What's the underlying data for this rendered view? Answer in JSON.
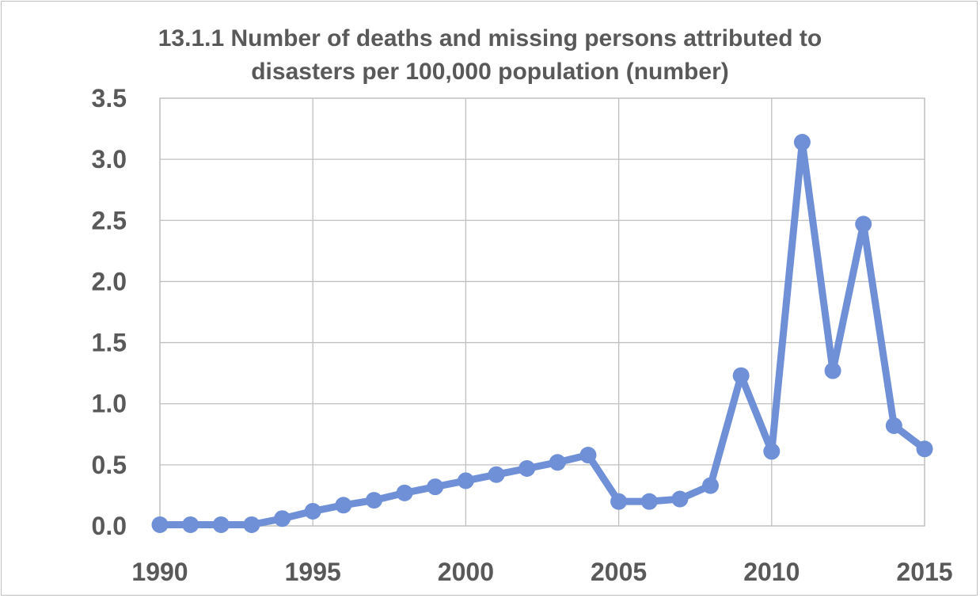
{
  "chart_data": {
    "type": "line",
    "title_lines": [
      "13.1.1 Number of deaths and missing persons attributed to",
      "disasters per 100,000 population (number)"
    ],
    "xlabel": "",
    "ylabel": "",
    "x": [
      1990,
      1991,
      1992,
      1993,
      1994,
      1995,
      1996,
      1997,
      1998,
      1999,
      2000,
      2001,
      2002,
      2003,
      2004,
      2005,
      2006,
      2007,
      2008,
      2009,
      2010,
      2011,
      2012,
      2013,
      2014,
      2015
    ],
    "series": [
      {
        "values": [
          0.01,
          0.01,
          0.01,
          0.01,
          0.06,
          0.12,
          0.17,
          0.21,
          0.27,
          0.32,
          0.37,
          0.42,
          0.47,
          0.52,
          0.58,
          0.2,
          0.2,
          0.22,
          0.33,
          1.23,
          0.61,
          3.14,
          1.27,
          2.47,
          0.82,
          0.63
        ],
        "color": "#6f8fd6"
      }
    ],
    "xlim": [
      1990,
      2015
    ],
    "ylim": [
      0,
      3.5
    ],
    "x_ticks": [
      "1990",
      "1995",
      "2000",
      "2005",
      "2010",
      "2015"
    ],
    "x_tick_values": [
      1990,
      1995,
      2000,
      2005,
      2010,
      2015
    ],
    "y_ticks": [
      "0.0",
      "0.5",
      "1.0",
      "1.5",
      "2.0",
      "2.5",
      "3.0",
      "3.5"
    ],
    "y_tick_values": [
      0,
      0.5,
      1,
      1.5,
      2,
      2.5,
      3,
      3.5
    ],
    "grid": true,
    "legend": false,
    "gridline_color": "#bfbfbf"
  }
}
